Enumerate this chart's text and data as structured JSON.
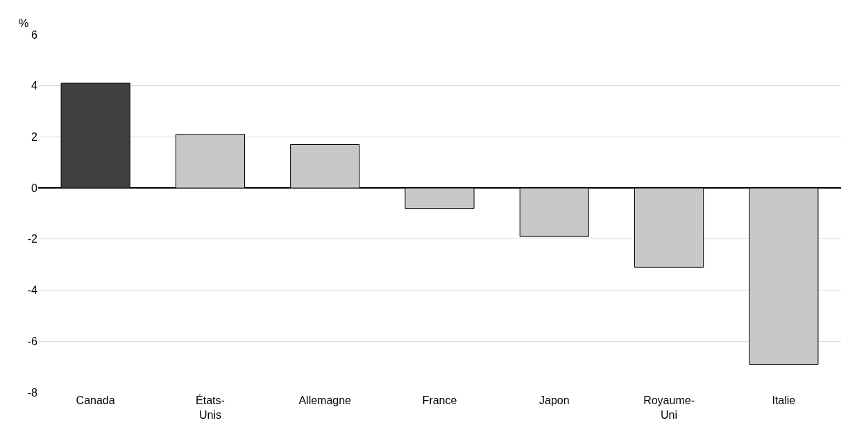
{
  "chart_data": {
    "type": "bar",
    "ylabel": "%",
    "categories": [
      "Canada",
      "États-\nUnis",
      "Allemagne",
      "France",
      "Japon",
      "Royaume-\nUni",
      "Italie"
    ],
    "values": [
      4.1,
      2.1,
      1.7,
      -0.8,
      -1.9,
      -3.1,
      -6.9
    ],
    "colors": [
      "#404040",
      "#c8c8c8",
      "#c8c8c8",
      "#c8c8c8",
      "#c8c8c8",
      "#c8c8c8",
      "#c8c8c8"
    ],
    "ylim": [
      -8,
      6
    ],
    "yticks": [
      -8,
      -6,
      -4,
      -2,
      0,
      2,
      4,
      6
    ],
    "grid": "y"
  }
}
